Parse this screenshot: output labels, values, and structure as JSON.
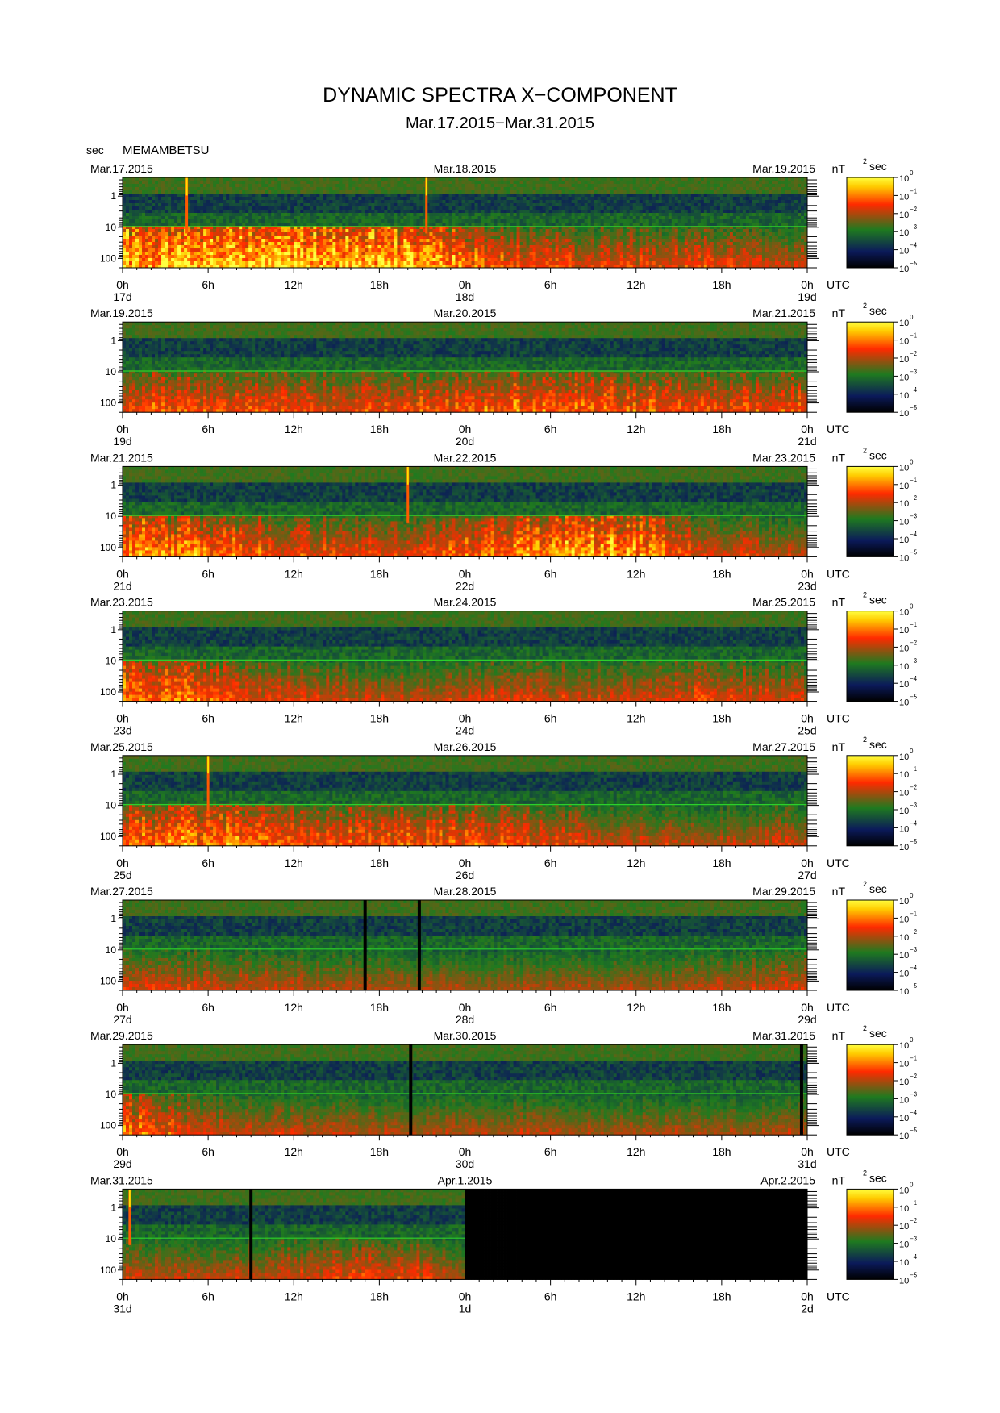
{
  "header": {
    "title": "DYNAMIC SPECTRA X−COMPONENT",
    "subtitle": "Mar.17.2015−Mar.31.2015",
    "y_unit": "sec",
    "station": "MEMAMBETSU"
  },
  "chart_data": {
    "type": "heatmap",
    "title": "DYNAMIC SPECTRA X−COMPONENT",
    "subtitle": "Mar.17.2015−Mar.31.2015",
    "station": "MEMAMBETSU",
    "ylabel": "sec",
    "y_scale": "log",
    "y_ticks": [
      "1",
      "10",
      "100"
    ],
    "x_tick_labels": [
      "0h",
      "6h",
      "12h",
      "18h",
      "0h",
      "6h",
      "12h",
      "18h",
      "0h"
    ],
    "x_unit_label": "UTC",
    "colorbar": {
      "unit": "nT",
      "unit_sup": "2",
      "unit_suffix": "sec",
      "scale": "log",
      "tick_base": "10",
      "tick_exponents": [
        "0",
        "−1",
        "−2",
        "−3",
        "−4",
        "−5"
      ],
      "range": [
        1e-05,
        1
      ],
      "colors": [
        "#000000",
        "#0b1a5a",
        "#1f7a1f",
        "#ff2a00",
        "#ffcc00",
        "#ffff40"
      ]
    },
    "panels": [
      {
        "start": "Mar.17.2015",
        "mid": "Mar.18.2015",
        "end": "Mar.19.2015",
        "days": [
          "17d",
          "18d",
          "19d"
        ],
        "activity": [
          0.95,
          0.98,
          1.0,
          0.9,
          0.55,
          0.45,
          0.5,
          0.4
        ],
        "spikes": [
          4.5,
          21.3
        ],
        "gaps": [],
        "nodata_from": null
      },
      {
        "start": "Mar.19.2015",
        "mid": "Mar.20.2015",
        "end": "Mar.21.2015",
        "days": [
          "19d",
          "20d",
          "21d"
        ],
        "activity": [
          0.6,
          0.55,
          0.5,
          0.55,
          0.65,
          0.6,
          0.55,
          0.55
        ],
        "spikes": [],
        "gaps": [],
        "nodata_from": null
      },
      {
        "start": "Mar.21.2015",
        "mid": "Mar.22.2015",
        "end": "Mar.23.2015",
        "days": [
          "21d",
          "22d",
          "23d"
        ],
        "activity": [
          0.8,
          0.7,
          0.5,
          0.5,
          0.75,
          0.9,
          0.45,
          0.35
        ],
        "spikes": [
          20.0
        ],
        "gaps": [],
        "nodata_from": null
      },
      {
        "start": "Mar.23.2015",
        "mid": "Mar.24.2015",
        "end": "Mar.25.2015",
        "days": [
          "23d",
          "24d",
          "25d"
        ],
        "activity": [
          0.75,
          0.6,
          0.4,
          0.35,
          0.45,
          0.4,
          0.5,
          0.4
        ],
        "spikes": [],
        "gaps": [],
        "nodata_from": null
      },
      {
        "start": "Mar.25.2015",
        "mid": "Mar.26.2015",
        "end": "Mar.27.2015",
        "days": [
          "25d",
          "26d",
          "27d"
        ],
        "activity": [
          0.65,
          0.75,
          0.55,
          0.6,
          0.55,
          0.4,
          0.35,
          0.4
        ],
        "spikes": [
          6.0
        ],
        "gaps": [],
        "nodata_from": null
      },
      {
        "start": "Mar.27.2015",
        "mid": "Mar.28.2015",
        "end": "Mar.29.2015",
        "days": [
          "27d",
          "28d",
          "29d"
        ],
        "activity": [
          0.45,
          0.4,
          0.35,
          0.3,
          0.3,
          0.3,
          0.35,
          0.4
        ],
        "spikes": [],
        "gaps": [
          17.0,
          20.8
        ],
        "nodata_from": null
      },
      {
        "start": "Mar.29.2015",
        "mid": "Mar.30.2015",
        "end": "Mar.31.2015",
        "days": [
          "29d",
          "30d",
          "31d"
        ],
        "activity": [
          0.7,
          0.4,
          0.35,
          0.3,
          0.35,
          0.3,
          0.3,
          0.35
        ],
        "spikes": [],
        "gaps": [
          20.2,
          47.6
        ],
        "nodata_from": null
      },
      {
        "start": "Mar.31.2015",
        "mid": "Apr.1.2015",
        "end": "Apr.2.2015",
        "days": [
          "31d",
          "1d",
          "2d"
        ],
        "activity": [
          0.4,
          0.35,
          0.45,
          0.5,
          0,
          0,
          0,
          0
        ],
        "spikes": [
          0.5
        ],
        "gaps": [
          9.0
        ],
        "nodata_from": 24
      }
    ]
  }
}
